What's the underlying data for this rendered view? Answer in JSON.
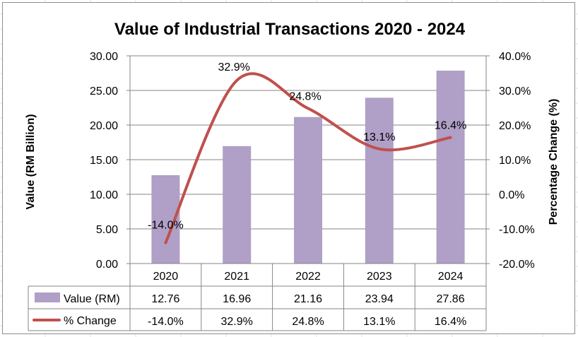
{
  "chart_data": {
    "type": "bar",
    "title": "Value of Industrial Transactions 2020 - 2024",
    "categories": [
      "2020",
      "2021",
      "2022",
      "2023",
      "2024"
    ],
    "series": [
      {
        "name": "Value (RM)",
        "type": "bar",
        "axis": "primary",
        "values": [
          12.76,
          16.96,
          21.16,
          23.94,
          27.86
        ],
        "table_labels": [
          "12.76",
          "16.96",
          "21.16",
          "23.94",
          "27.86"
        ],
        "color": "#b09fc6"
      },
      {
        "name": "% Change",
        "type": "line",
        "axis": "secondary",
        "smooth": true,
        "values": [
          -14.0,
          32.9,
          24.8,
          13.1,
          16.4
        ],
        "table_labels": [
          "-14.0%",
          "32.9%",
          "24.8%",
          "13.1%",
          "16.4%"
        ],
        "data_labels": [
          "-14.0%",
          "32.9%",
          "24.8%",
          "13.1%",
          "16.4%"
        ],
        "color": "#c0504d",
        "label_colors": [
          "#ff0000",
          "#000000",
          "#000000",
          "#000000",
          "#000000"
        ]
      }
    ],
    "ylabel": "Value (RM Billion)",
    "y2label": "Percentage Change (%)",
    "ylim": [
      0,
      30
    ],
    "y2lim": [
      -20,
      40
    ],
    "yticks": [
      "0.00",
      "5.00",
      "10.00",
      "15.00",
      "20.00",
      "25.00",
      "30.00"
    ],
    "y2ticks": [
      "-20.0%",
      "-10.0%",
      "0.0%",
      "10.0%",
      "20.0%",
      "30.0%",
      "40.0%"
    ],
    "grid": true,
    "legend": "data-table"
  }
}
